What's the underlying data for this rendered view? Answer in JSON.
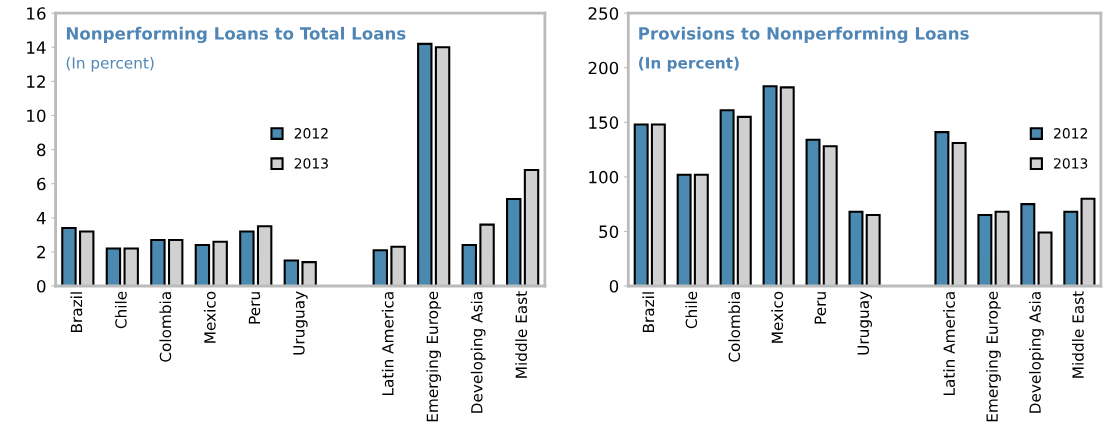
{
  "chart_data": [
    {
      "type": "bar",
      "title": "Nonperforming Loans to Total Loans",
      "subtitle": "(In percent)",
      "categories": [
        "Brazil",
        "Chile",
        "Colombia",
        "Mexico",
        "Peru",
        "Uruguay",
        null,
        "Latin America",
        "Emerging Europe",
        "Developing Asia",
        "Middle East"
      ],
      "series": [
        {
          "name": "2012",
          "color": "#4a8ab0",
          "values": [
            3.4,
            2.2,
            2.7,
            2.4,
            3.2,
            1.5,
            null,
            2.1,
            14.2,
            2.4,
            5.1
          ]
        },
        {
          "name": "2013",
          "color": "#d0d0d0",
          "values": [
            3.2,
            2.2,
            2.7,
            2.6,
            3.5,
            1.4,
            null,
            2.3,
            14.0,
            3.6,
            6.8
          ]
        }
      ],
      "ylim": [
        0,
        16
      ],
      "yticks": [
        0,
        2,
        4,
        6,
        8,
        10,
        12,
        14,
        16
      ],
      "grid": false,
      "legend": "center"
    },
    {
      "type": "bar",
      "title": "Provisions to Nonperforming Loans",
      "subtitle": "(In percent)",
      "categories": [
        "Brazil",
        "Chile",
        "Colombia",
        "Mexico",
        "Peru",
        "Uruguay",
        null,
        "Latin America",
        "Emerging Europe",
        "Developing Asia",
        "Middle East"
      ],
      "series": [
        {
          "name": "2012",
          "color": "#4a8ab0",
          "values": [
            148,
            102,
            161,
            183,
            134,
            68,
            null,
            141,
            65,
            75,
            68
          ]
        },
        {
          "name": "2013",
          "color": "#d0d0d0",
          "values": [
            148,
            102,
            155,
            182,
            128,
            65,
            null,
            131,
            68,
            49,
            80
          ]
        }
      ],
      "ylim": [
        0,
        250
      ],
      "yticks": [
        0,
        50,
        100,
        150,
        200,
        250
      ],
      "grid": false,
      "legend": "right"
    }
  ]
}
